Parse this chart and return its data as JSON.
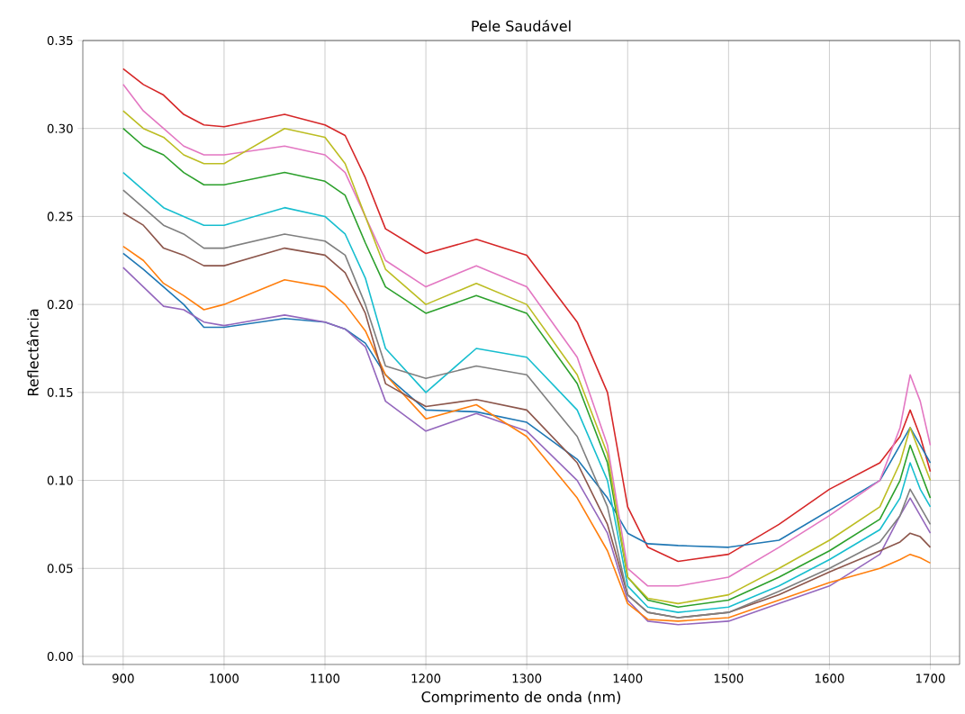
{
  "chart_data": {
    "type": "line",
    "title": "Pele Saudável",
    "xlabel": "Comprimento de onda (nm)",
    "ylabel": "Reflectância",
    "x": [
      900,
      920,
      940,
      960,
      980,
      1000,
      1060,
      1100,
      1120,
      1140,
      1160,
      1200,
      1250,
      1300,
      1350,
      1380,
      1400,
      1420,
      1450,
      1500,
      1550,
      1600,
      1650,
      1670,
      1680,
      1690,
      1700
    ],
    "xlim": [
      860,
      1729
    ],
    "xticks": [
      900,
      1000,
      1100,
      1200,
      1300,
      1400,
      1500,
      1600,
      1700
    ],
    "ylim": [
      -0.0046,
      0.35
    ],
    "yticks": [
      {
        "value": 0,
        "label": "0.00"
      },
      {
        "value": 0.05,
        "label": "0.05"
      },
      {
        "value": 0.1,
        "label": "0.10"
      },
      {
        "value": 0.15,
        "label": "0.15"
      },
      {
        "value": 0.2,
        "label": "0.20"
      },
      {
        "value": 0.25,
        "label": "0.25"
      },
      {
        "value": 0.3,
        "label": "0.30"
      },
      {
        "value": 0.35,
        "label": "0.35"
      }
    ],
    "grid": true,
    "series": [
      {
        "color": "#d62728",
        "values": [
          0.334,
          0.325,
          0.319,
          0.308,
          0.302,
          0.301,
          0.308,
          0.302,
          0.296,
          0.272,
          0.243,
          0.229,
          0.237,
          0.228,
          0.19,
          0.15,
          0.085,
          0.062,
          0.054,
          0.058,
          0.075,
          0.095,
          0.11,
          0.125,
          0.14,
          0.125,
          0.105
        ]
      },
      {
        "color": "#1f77b4",
        "values": [
          0.229,
          0.22,
          0.21,
          0.2,
          0.187,
          0.187,
          0.192,
          0.19,
          0.186,
          0.178,
          0.16,
          0.14,
          0.139,
          0.133,
          0.112,
          0.09,
          0.07,
          0.064,
          0.063,
          0.062,
          0.066,
          0.083,
          0.1,
          0.12,
          0.13,
          0.12,
          0.11
        ]
      },
      {
        "color": "#9467bd",
        "values": [
          0.221,
          0.21,
          0.199,
          0.197,
          0.19,
          0.188,
          0.194,
          0.19,
          0.186,
          0.176,
          0.145,
          0.128,
          0.138,
          0.128,
          0.1,
          0.07,
          0.032,
          0.02,
          0.018,
          0.02,
          0.03,
          0.04,
          0.058,
          0.08,
          0.09,
          0.08,
          0.07
        ]
      },
      {
        "color": "#ff7f0e",
        "values": [
          0.233,
          0.225,
          0.212,
          0.205,
          0.197,
          0.2,
          0.214,
          0.21,
          0.2,
          0.185,
          0.16,
          0.135,
          0.143,
          0.125,
          0.09,
          0.06,
          0.03,
          0.021,
          0.02,
          0.022,
          0.032,
          0.042,
          0.05,
          0.055,
          0.058,
          0.056,
          0.053
        ]
      },
      {
        "color": "#e377c2",
        "values": [
          0.325,
          0.31,
          0.3,
          0.29,
          0.285,
          0.285,
          0.29,
          0.285,
          0.275,
          0.25,
          0.225,
          0.21,
          0.222,
          0.21,
          0.17,
          0.12,
          0.05,
          0.04,
          0.04,
          0.045,
          0.062,
          0.08,
          0.1,
          0.13,
          0.16,
          0.145,
          0.12
        ]
      },
      {
        "color": "#2ca02c",
        "values": [
          0.3,
          0.29,
          0.285,
          0.275,
          0.268,
          0.268,
          0.275,
          0.27,
          0.262,
          0.235,
          0.21,
          0.195,
          0.205,
          0.195,
          0.155,
          0.11,
          0.045,
          0.032,
          0.028,
          0.032,
          0.045,
          0.06,
          0.078,
          0.1,
          0.12,
          0.105,
          0.09
        ]
      },
      {
        "color": "#17becf",
        "values": [
          0.275,
          0.265,
          0.255,
          0.25,
          0.245,
          0.245,
          0.255,
          0.25,
          0.24,
          0.215,
          0.175,
          0.15,
          0.175,
          0.17,
          0.14,
          0.1,
          0.04,
          0.028,
          0.025,
          0.028,
          0.04,
          0.055,
          0.072,
          0.09,
          0.11,
          0.095,
          0.085
        ]
      },
      {
        "color": "#8c564b",
        "values": [
          0.252,
          0.245,
          0.232,
          0.228,
          0.222,
          0.222,
          0.232,
          0.228,
          0.218,
          0.195,
          0.155,
          0.142,
          0.146,
          0.14,
          0.11,
          0.075,
          0.035,
          0.025,
          0.022,
          0.025,
          0.035,
          0.048,
          0.06,
          0.065,
          0.07,
          0.068,
          0.062
        ]
      },
      {
        "color": "#bcbd22",
        "values": [
          0.31,
          0.3,
          0.295,
          0.285,
          0.28,
          0.28,
          0.3,
          0.295,
          0.28,
          0.25,
          0.22,
          0.2,
          0.212,
          0.2,
          0.16,
          0.115,
          0.045,
          0.033,
          0.03,
          0.035,
          0.05,
          0.066,
          0.085,
          0.11,
          0.13,
          0.115,
          0.1
        ]
      },
      {
        "color": "#7f7f7f",
        "values": [
          0.265,
          0.255,
          0.245,
          0.24,
          0.232,
          0.232,
          0.24,
          0.236,
          0.228,
          0.2,
          0.165,
          0.158,
          0.165,
          0.16,
          0.125,
          0.085,
          0.035,
          0.025,
          0.022,
          0.025,
          0.037,
          0.05,
          0.065,
          0.08,
          0.095,
          0.085,
          0.075
        ]
      }
    ]
  }
}
